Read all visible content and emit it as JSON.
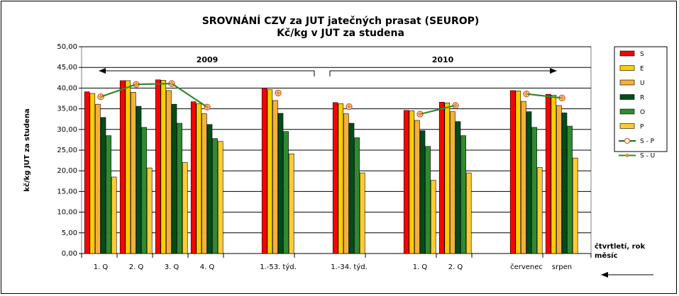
{
  "chart_data": {
    "type": "bar",
    "title": "SROVNÁNÍ  CZV za JUT jatečných prasat (SEUROP)",
    "subtitle": "Kč/kg v JUT za studena",
    "ylabel": "kč/kg JUT za studena",
    "xlabel": "čtvrtletí, rok\nměsíc",
    "xlabel_lines": [
      "čtvrtletí, rok",
      "měsíc"
    ],
    "ylim": [
      0,
      50
    ],
    "y_ticks": [
      "0,00",
      "5,00",
      "10,00",
      "15,00",
      "20,00",
      "25,00",
      "30,00",
      "35,00",
      "40,00",
      "45,00",
      "50,00"
    ],
    "grid": true,
    "legend_position": "right",
    "categories": [
      "1. Q",
      "2. Q",
      "3. Q",
      "4. Q",
      "1.-53. týd.",
      "1.-34. týd.",
      "1. Q",
      "2. Q",
      "červenec",
      "srpen"
    ],
    "year_groups": [
      {
        "label": "2009"
      },
      {
        "label": "2010"
      }
    ],
    "series": [
      {
        "name": "S",
        "color": "#ff0000",
        "values": [
          39.1,
          41.8,
          42.0,
          36.7,
          40.0,
          36.5,
          34.6,
          36.6,
          39.4,
          38.5
        ]
      },
      {
        "name": "E",
        "color": "#ffcc00",
        "values": [
          38.7,
          41.8,
          41.9,
          36.2,
          39.6,
          36.2,
          34.5,
          36.4,
          39.3,
          38.3
        ]
      },
      {
        "name": "U",
        "color": "#f5b03c",
        "values": [
          36.1,
          39.0,
          39.4,
          33.8,
          37.0,
          33.8,
          32.2,
          34.3,
          36.8,
          35.8
        ]
      },
      {
        "name": "R",
        "color": "#004d1a",
        "values": [
          32.9,
          35.6,
          36.1,
          31.2,
          33.9,
          31.5,
          29.7,
          31.9,
          34.3,
          34.0
        ]
      },
      {
        "name": "O",
        "color": "#2e8b2e",
        "values": [
          28.5,
          30.5,
          31.5,
          27.8,
          29.5,
          28.0,
          25.9,
          28.5,
          30.5,
          30.8
        ]
      },
      {
        "name": "P",
        "color": "#ffcc33",
        "values": [
          18.5,
          20.7,
          22.0,
          27.1,
          24.1,
          19.5,
          17.7,
          19.5,
          20.8,
          23.1
        ]
      }
    ],
    "line_series": [
      {
        "name": "S - P",
        "color": "#1a6b1a",
        "marker": "circle",
        "values": [
          37.9,
          40.9,
          41.1,
          35.4,
          38.8,
          35.5,
          33.7,
          35.8,
          38.6,
          37.6
        ],
        "segments": [
          [
            0,
            3
          ],
          [
            6,
            7
          ],
          [
            8,
            9
          ]
        ]
      },
      {
        "name": "S - U",
        "color": "#2e8b2e",
        "marker": "diamond",
        "values": [
          37.9,
          40.9,
          41.1,
          35.4,
          38.8,
          35.5,
          33.7,
          35.8,
          38.6,
          37.6
        ],
        "segments": [
          [
            0,
            3
          ],
          [
            6,
            7
          ],
          [
            8,
            9
          ]
        ]
      }
    ]
  }
}
